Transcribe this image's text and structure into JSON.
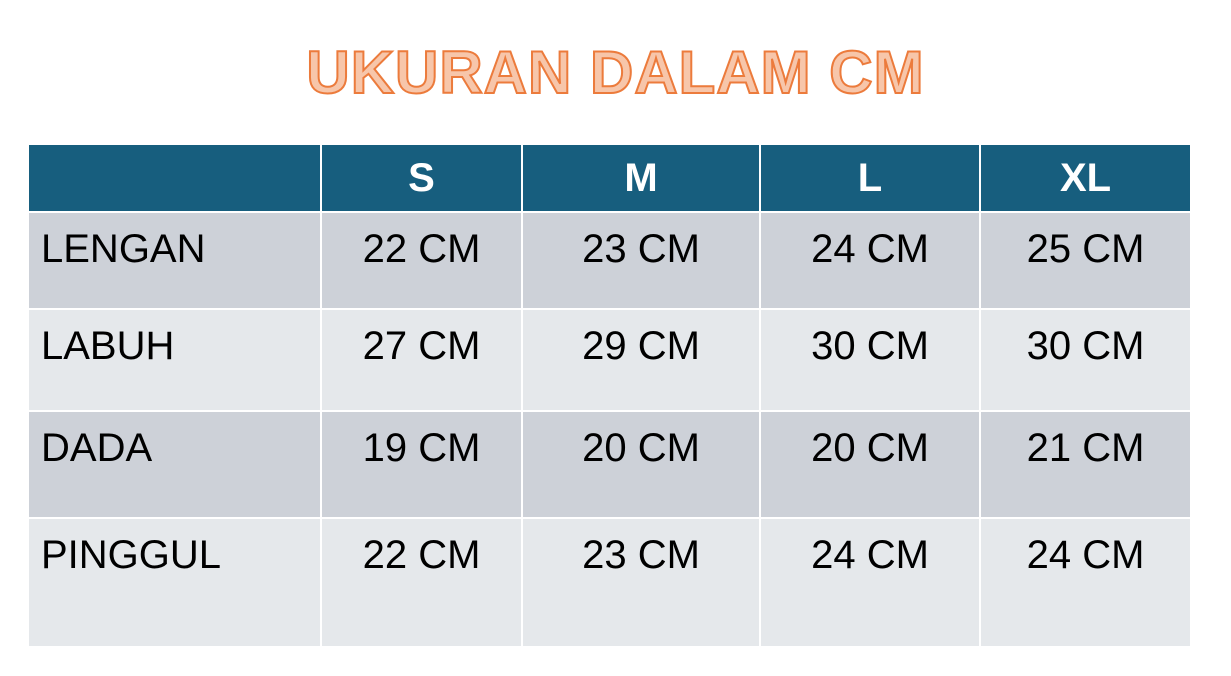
{
  "title": "UKURAN DALAM CM",
  "table": {
    "headers": [
      "",
      "S",
      "M",
      "L",
      "XL"
    ],
    "rows": [
      {
        "label": "LENGAN",
        "values": [
          "22 CM",
          "23 CM",
          "24 CM",
          "25 CM"
        ]
      },
      {
        "label": "LABUH",
        "values": [
          "27 CM",
          "29 CM",
          "30 CM",
          "30 CM"
        ]
      },
      {
        "label": "DADA",
        "values": [
          "19 CM",
          "20 CM",
          "20 CM",
          "21 CM"
        ]
      },
      {
        "label": "PINGGUL",
        "values": [
          "22 CM",
          "23 CM",
          "24 CM",
          "24 CM"
        ]
      }
    ]
  },
  "colors": {
    "header": "#175e7e",
    "title_fill": "#f7c6aa",
    "title_stroke": "#ec7b3c",
    "row_dark": "#cdd1d8",
    "row_light": "#e5e8eb"
  }
}
